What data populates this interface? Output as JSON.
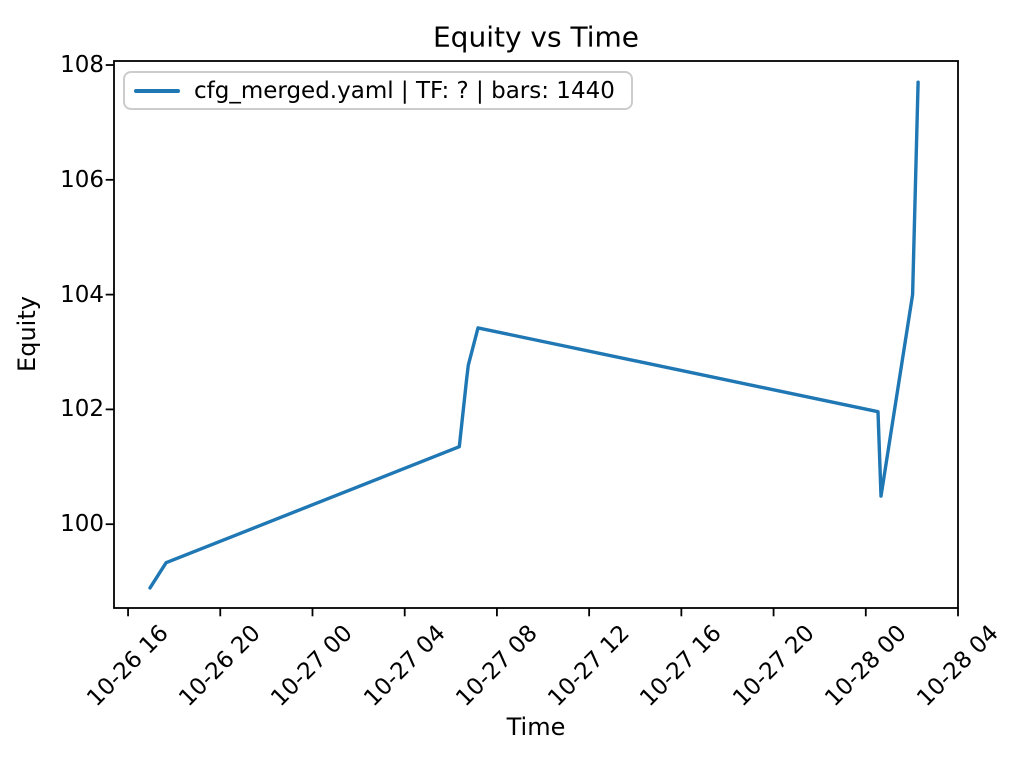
{
  "chart_data": {
    "type": "line",
    "title": "Equity vs Time",
    "xlabel": "Time",
    "ylabel": "Equity",
    "grid": false,
    "legend_position": "upper left",
    "line_color": "#1f77b4",
    "axis_color": "#000000",
    "legend_border_color": "#cccccc",
    "x_unit": "hours since 10-26 16:00",
    "x_tick_hours": [
      0,
      4,
      8,
      12,
      16,
      20,
      24,
      28,
      32,
      36
    ],
    "x_tick_labels": [
      "10-26 16",
      "10-26 20",
      "10-27 00",
      "10-27 04",
      "10-27 08",
      "10-27 12",
      "10-27 16",
      "10-27 20",
      "10-28 00",
      "10-28 04"
    ],
    "x_range_hours": [
      -0.61,
      36.0
    ],
    "y_ticks": [
      100,
      102,
      104,
      106,
      108
    ],
    "y_tick_labels": [
      "100",
      "102",
      "104",
      "106",
      "108"
    ],
    "y_range": [
      98.54,
      108.07
    ],
    "legend": {
      "entries": [
        {
          "label": "cfg_merged.yaml | TF: ? | bars: 1440",
          "color": "#1f77b4"
        }
      ]
    },
    "series": [
      {
        "name": "cfg_merged.yaml | TF: ? | bars: 1440",
        "color": "#1f77b4",
        "points": [
          {
            "hours": 0.95,
            "time": "10-26 17:00",
            "equity": 98.89
          },
          {
            "hours": 1.65,
            "time": "10-26 17:40",
            "equity": 99.33
          },
          {
            "hours": 14.37,
            "time": "10-27 06:20",
            "equity": 101.35
          },
          {
            "hours": 14.69,
            "time": "10-27 06:40",
            "equity": 102.54
          },
          {
            "hours": 14.76,
            "time": "10-27 06:45",
            "equity": 102.77
          },
          {
            "hours": 15.18,
            "time": "10-27 07:10",
            "equity": 103.42
          },
          {
            "hours": 32.53,
            "time": "10-28 00:30",
            "equity": 101.96
          },
          {
            "hours": 32.66,
            "time": "10-28 00:40",
            "equity": 100.49
          },
          {
            "hours": 34.03,
            "time": "10-28 02:00",
            "equity": 104.0
          },
          {
            "hours": 34.27,
            "time": "10-28 02:15",
            "equity": 107.7
          }
        ]
      }
    ]
  }
}
